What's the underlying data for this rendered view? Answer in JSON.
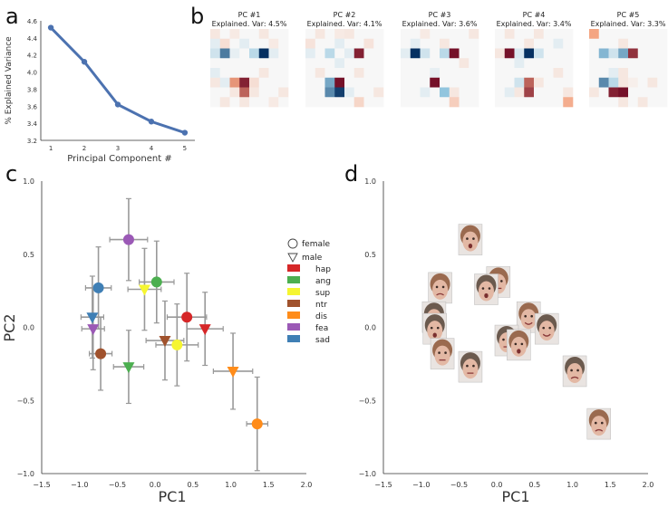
{
  "panel_labels": [
    "a",
    "b",
    "c",
    "d"
  ],
  "chart_data": [
    {
      "panel": "a",
      "type": "line",
      "xlabel": "Principal Component #",
      "ylabel": "% Explained Variance",
      "xlim": [
        0.7,
        5.3
      ],
      "ylim": [
        3.2,
        4.6
      ],
      "xticks": [
        1,
        2,
        3,
        4,
        5
      ],
      "yticks": [
        3.2,
        3.4,
        3.6,
        3.8,
        4.0,
        4.2,
        4.4,
        4.6
      ],
      "ytick_labels": [
        "3.2",
        "3.4",
        "3.6",
        "3.8",
        "4.0",
        "4.2",
        "4.4",
        "4.6"
      ],
      "x": [
        1,
        2,
        3,
        4,
        5
      ],
      "values": [
        4.52,
        4.12,
        3.62,
        3.42,
        3.29
      ],
      "color": "#4c72b0"
    },
    {
      "panel": "b",
      "type": "heatmap",
      "maps": [
        {
          "title": "PC #1",
          "subtitle": "Explained. Var: 4.5%",
          "grid": [
            [
              0.1,
              0,
              0.08,
              0,
              0,
              0.1,
              0,
              0
            ],
            [
              -0.1,
              0.15,
              0,
              -0.1,
              0,
              0,
              0.08,
              0
            ],
            [
              -0.2,
              -0.75,
              -0.08,
              0,
              -0.3,
              -1,
              -0.1,
              0
            ],
            [
              0,
              0,
              0,
              0,
              0,
              0,
              0,
              0
            ],
            [
              -0.1,
              0,
              0,
              0,
              0,
              0.1,
              0,
              0
            ],
            [
              0.1,
              -0.1,
              0.55,
              0.9,
              0.15,
              0,
              0,
              0
            ],
            [
              0,
              0,
              0.1,
              0.7,
              0.1,
              0,
              0,
              0.1
            ],
            [
              0,
              0.1,
              0,
              0.1,
              0,
              0,
              0.08,
              0
            ]
          ]
        },
        {
          "title": "PC #2",
          "subtitle": "Explained. Var: 4.1%",
          "grid": [
            [
              0,
              0.1,
              0,
              0.08,
              0.1,
              0,
              0,
              0
            ],
            [
              0.12,
              0,
              0,
              -0.1,
              0,
              0,
              0.12,
              0
            ],
            [
              -0.1,
              0,
              -0.3,
              0,
              -0.1,
              0.9,
              0,
              0
            ],
            [
              0,
              0,
              0,
              -0.1,
              0,
              0,
              0,
              0
            ],
            [
              0,
              0.1,
              0,
              0,
              0,
              0.1,
              0,
              0
            ],
            [
              0,
              0,
              -0.6,
              0.95,
              0,
              0,
              0,
              0
            ],
            [
              0,
              0,
              -0.7,
              -0.95,
              -0.1,
              0,
              0,
              0.1
            ],
            [
              0,
              0,
              0,
              0,
              0,
              0.2,
              0,
              0
            ]
          ]
        },
        {
          "title": "PC #3",
          "subtitle": "Explained. Var: 3.6%",
          "grid": [
            [
              0,
              0,
              0.08,
              0,
              0,
              0,
              0,
              0.1
            ],
            [
              0,
              -0.1,
              0,
              0,
              0.1,
              0,
              0,
              0
            ],
            [
              -0.1,
              -1,
              -0.2,
              0,
              -0.3,
              0.95,
              0,
              0
            ],
            [
              0,
              0,
              0,
              0,
              0,
              0,
              0.1,
              0
            ],
            [
              0,
              0,
              0,
              -0.08,
              0,
              0,
              0,
              0
            ],
            [
              0,
              0,
              0,
              0.95,
              0,
              0,
              0,
              0
            ],
            [
              0,
              0,
              -0.1,
              0,
              -0.5,
              0.1,
              0,
              0
            ],
            [
              0,
              0,
              0,
              0,
              0,
              0.25,
              0,
              0
            ]
          ]
        },
        {
          "title": "PC #4",
          "subtitle": "Explained. Var: 3.4%",
          "grid": [
            [
              0,
              0.1,
              0,
              0,
              0.1,
              0,
              0,
              0
            ],
            [
              0,
              0,
              0,
              0.1,
              0,
              0,
              -0.1,
              0
            ],
            [
              0.1,
              0.95,
              -0.15,
              -1,
              -0.2,
              0,
              0,
              0
            ],
            [
              0,
              0,
              -0.1,
              0,
              0,
              0,
              0,
              0
            ],
            [
              0,
              0,
              0,
              0,
              0,
              0,
              0.1,
              0
            ],
            [
              0,
              0,
              -0.2,
              0.7,
              0.1,
              0,
              0,
              0
            ],
            [
              0,
              -0.1,
              0.1,
              0.8,
              0,
              0,
              0,
              0.1
            ],
            [
              0,
              0,
              0,
              0,
              0,
              0,
              0,
              0.45
            ]
          ]
        },
        {
          "title": "PC #5",
          "subtitle": "Explained. Var: 3.3%",
          "grid": [
            [
              0.5,
              0,
              0,
              0,
              0,
              0,
              0,
              0
            ],
            [
              0,
              0,
              0,
              0.1,
              0,
              0,
              0,
              0
            ],
            [
              0,
              -0.55,
              -0.2,
              -0.6,
              0.85,
              0,
              0,
              0
            ],
            [
              0,
              0,
              0,
              0,
              0,
              0,
              0,
              0
            ],
            [
              0,
              0,
              -0.1,
              0.1,
              0,
              0,
              0,
              0
            ],
            [
              0,
              -0.7,
              -0.3,
              0.1,
              0.05,
              0,
              0.1,
              0
            ],
            [
              0.1,
              0,
              0.9,
              0.95,
              0,
              0,
              0,
              0
            ],
            [
              0,
              0,
              0,
              0.1,
              0,
              0.1,
              0,
              0
            ]
          ]
        }
      ]
    },
    {
      "panel": "c",
      "type": "scatter",
      "xlabel": "PC1",
      "ylabel": "PC2",
      "xlim": [
        -1.5,
        2.0
      ],
      "ylim": [
        -1.0,
        1.0
      ],
      "xticks": [
        -1.5,
        -1.0,
        -0.5,
        0.0,
        0.5,
        1.0,
        1.5,
        2.0
      ],
      "xtick_labels": [
        "−1.5",
        "−1.0",
        "−0.5",
        "0.0",
        "0.5",
        "1.0",
        "1.5",
        "2.0"
      ],
      "yticks": [
        1.0,
        0.5,
        0.0,
        -0.5,
        -1.0
      ],
      "ytick_labels": [
        "1.0",
        "0.5",
        "0.0",
        "−0.5",
        "−1.0"
      ],
      "legend_placement": "top-right",
      "gender_legend": [
        {
          "label": "female",
          "marker": "circle"
        },
        {
          "label": "male",
          "marker": "triangle"
        }
      ],
      "emotions": [
        {
          "code": "hap",
          "color": "#d62728"
        },
        {
          "code": "ang",
          "color": "#4caf50"
        },
        {
          "code": "sup",
          "color": "#f5f531"
        },
        {
          "code": "ntr",
          "color": "#a0522d"
        },
        {
          "code": "dis",
          "color": "#ff8c1a"
        },
        {
          "code": "fea",
          "color": "#9b59b6"
        },
        {
          "code": "sad",
          "color": "#3f7fb5"
        }
      ],
      "points": [
        {
          "emotion": "fea",
          "gender": "female",
          "x": -0.35,
          "y": 0.6,
          "ex": 0.25,
          "ey": 0.28
        },
        {
          "emotion": "ang",
          "gender": "female",
          "x": 0.02,
          "y": 0.31,
          "ex": 0.23,
          "ey": 0.28
        },
        {
          "emotion": "sup",
          "gender": "male",
          "x": -0.14,
          "y": 0.26,
          "ex": 0.22,
          "ey": 0.28
        },
        {
          "emotion": "sad",
          "gender": "female",
          "x": -0.75,
          "y": 0.27,
          "ex": 0.17,
          "ey": 0.28
        },
        {
          "emotion": "sad",
          "gender": "male",
          "x": -0.83,
          "y": 0.07,
          "ex": 0.15,
          "ey": 0.28
        },
        {
          "emotion": "fea",
          "gender": "male",
          "x": -0.82,
          "y": -0.01,
          "ex": 0.15,
          "ey": 0.28
        },
        {
          "emotion": "ntr",
          "gender": "female",
          "x": -0.72,
          "y": -0.18,
          "ex": 0.15,
          "ey": 0.25
        },
        {
          "emotion": "ang",
          "gender": "male",
          "x": -0.35,
          "y": -0.27,
          "ex": 0.2,
          "ey": 0.25
        },
        {
          "emotion": "hap",
          "gender": "female",
          "x": 0.42,
          "y": 0.07,
          "ex": 0.26,
          "ey": 0.3
        },
        {
          "emotion": "hap",
          "gender": "male",
          "x": 0.66,
          "y": -0.01,
          "ex": 0.24,
          "ey": 0.25
        },
        {
          "emotion": "ntr",
          "gender": "male",
          "x": 0.13,
          "y": -0.09,
          "ex": 0.25,
          "ey": 0.27
        },
        {
          "emotion": "sup",
          "gender": "female",
          "x": 0.29,
          "y": -0.12,
          "ex": 0.28,
          "ey": 0.28
        },
        {
          "emotion": "dis",
          "gender": "male",
          "x": 1.03,
          "y": -0.3,
          "ex": 0.26,
          "ey": 0.26
        },
        {
          "emotion": "dis",
          "gender": "female",
          "x": 1.35,
          "y": -0.66,
          "ex": 0.14,
          "ey": 0.32
        }
      ]
    },
    {
      "panel": "d",
      "type": "scatter",
      "xlabel": "PC1",
      "ylabel": "",
      "xlim": [
        -1.5,
        2.0
      ],
      "ylim": [
        -1.0,
        1.0
      ],
      "xticks": [
        -1.5,
        -1.0,
        -0.5,
        0.0,
        0.5,
        1.0,
        1.5,
        2.0
      ],
      "xtick_labels": [
        "−1.5",
        "−1.0",
        "−0.5",
        "0.0",
        "0.5",
        "1.0",
        "1.5",
        "2.0"
      ],
      "yticks": [
        1.0,
        0.5,
        0.0,
        -0.5,
        -1.0
      ],
      "ytick_labels": [
        "1.0",
        "0.5",
        "0.0",
        "−0.5",
        "−1.0"
      ],
      "faces": [
        {
          "emotion": "fea",
          "gender": "female",
          "x": -0.35,
          "y": 0.6
        },
        {
          "emotion": "ang",
          "gender": "female",
          "x": 0.02,
          "y": 0.31
        },
        {
          "emotion": "sup",
          "gender": "male",
          "x": -0.14,
          "y": 0.26
        },
        {
          "emotion": "sad",
          "gender": "female",
          "x": -0.75,
          "y": 0.27
        },
        {
          "emotion": "sad",
          "gender": "male",
          "x": -0.83,
          "y": 0.07
        },
        {
          "emotion": "fea",
          "gender": "male",
          "x": -0.82,
          "y": -0.01
        },
        {
          "emotion": "ntr",
          "gender": "female",
          "x": -0.72,
          "y": -0.18
        },
        {
          "emotion": "ang",
          "gender": "male",
          "x": -0.35,
          "y": -0.27
        },
        {
          "emotion": "hap",
          "gender": "female",
          "x": 0.42,
          "y": 0.07
        },
        {
          "emotion": "hap",
          "gender": "male",
          "x": 0.66,
          "y": -0.01
        },
        {
          "emotion": "ntr",
          "gender": "male",
          "x": 0.13,
          "y": -0.09
        },
        {
          "emotion": "sup",
          "gender": "female",
          "x": 0.29,
          "y": -0.12
        },
        {
          "emotion": "dis",
          "gender": "male",
          "x": 1.03,
          "y": -0.3
        },
        {
          "emotion": "dis",
          "gender": "female",
          "x": 1.35,
          "y": -0.66
        }
      ]
    }
  ]
}
